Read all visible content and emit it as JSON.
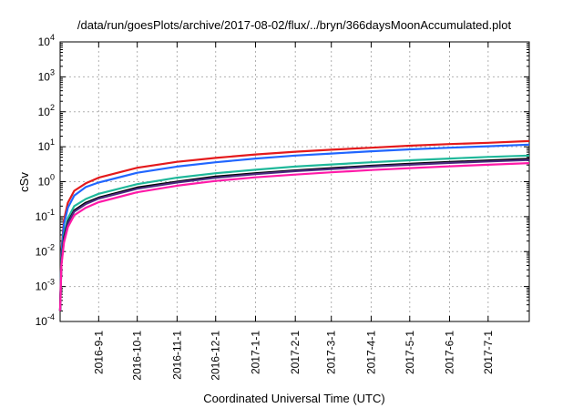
{
  "chart_data": {
    "type": "line",
    "title": "/data/run/goesPlots/archive/2017-08-02/flux/../bryn/366daysMoonAccumulated.plot",
    "xlabel": "Coordinated Universal Time (UTC)",
    "ylabel": "cSv",
    "y_scale": "log",
    "ylim": [
      0.0001,
      10000
    ],
    "xlim": [
      "2016-08-02",
      "2017-08-02"
    ],
    "y_ticks": [
      {
        "base": "10",
        "exp": "-4"
      },
      {
        "base": "10",
        "exp": "-3"
      },
      {
        "base": "10",
        "exp": "-2"
      },
      {
        "base": "10",
        "exp": "-1"
      },
      {
        "base": "10",
        "exp": "0"
      },
      {
        "base": "10",
        "exp": "1"
      },
      {
        "base": "10",
        "exp": "2"
      },
      {
        "base": "10",
        "exp": "3"
      },
      {
        "base": "10",
        "exp": "4"
      }
    ],
    "x_ticks": [
      {
        "label": "2016-9-1",
        "date": "2016-09-01"
      },
      {
        "label": "2016-10-1",
        "date": "2016-10-01"
      },
      {
        "label": "2016-11-1",
        "date": "2016-11-01"
      },
      {
        "label": "2016-12-1",
        "date": "2016-12-01"
      },
      {
        "label": "2017-1-1",
        "date": "2017-01-01"
      },
      {
        "label": "2017-2-1",
        "date": "2017-02-01"
      },
      {
        "label": "2017-3-1",
        "date": "2017-03-01"
      },
      {
        "label": "2017-4-1",
        "date": "2017-04-01"
      },
      {
        "label": "2017-5-1",
        "date": "2017-05-01"
      },
      {
        "label": "2017-6-1",
        "date": "2017-06-01"
      },
      {
        "label": "2017-7-1",
        "date": "2017-07-01"
      }
    ],
    "grid": true,
    "x": [
      "2016-08-02",
      "2016-08-03",
      "2016-08-05",
      "2016-08-08",
      "2016-08-13",
      "2016-08-22",
      "2016-09-01",
      "2016-10-01",
      "2016-11-01",
      "2016-12-01",
      "2017-01-01",
      "2017-02-01",
      "2017-03-01",
      "2017-04-01",
      "2017-05-01",
      "2017-06-01",
      "2017-07-01",
      "2017-08-02"
    ],
    "series": [
      {
        "color": "#e41a1c",
        "values": [
          0.0002,
          0.01,
          0.08,
          0.25,
          0.55,
          0.9,
          1.3,
          2.5,
          3.7,
          4.8,
          6.0,
          7.2,
          8.2,
          9.4,
          10.7,
          11.9,
          13.0,
          14.5
        ]
      },
      {
        "color": "#2166ff",
        "values": [
          0.0002,
          0.008,
          0.06,
          0.18,
          0.4,
          0.7,
          0.95,
          1.8,
          2.7,
          3.6,
          4.6,
          5.6,
          6.4,
          7.4,
          8.4,
          9.4,
          10.3,
          11.5
        ]
      },
      {
        "color": "#1fb89a",
        "values": [
          0.0002,
          0.006,
          0.03,
          0.09,
          0.2,
          0.32,
          0.45,
          0.85,
          1.3,
          1.75,
          2.2,
          2.7,
          3.1,
          3.6,
          4.1,
          4.6,
          5.1,
          5.6
        ]
      },
      {
        "color": "#000000",
        "values": [
          0.0002,
          0.005,
          0.025,
          0.07,
          0.15,
          0.25,
          0.35,
          0.68,
          1.0,
          1.4,
          1.75,
          2.1,
          2.45,
          2.85,
          3.25,
          3.65,
          4.05,
          4.5
        ]
      },
      {
        "color": "#4b2b7f",
        "values": [
          0.0002,
          0.0045,
          0.022,
          0.065,
          0.14,
          0.23,
          0.33,
          0.63,
          0.95,
          1.3,
          1.65,
          2.0,
          2.3,
          2.7,
          3.05,
          3.45,
          3.8,
          4.2
        ]
      },
      {
        "color": "#ff1aa8",
        "values": [
          0.0002,
          0.004,
          0.018,
          0.05,
          0.11,
          0.18,
          0.26,
          0.5,
          0.77,
          1.05,
          1.33,
          1.6,
          1.85,
          2.15,
          2.45,
          2.75,
          3.05,
          3.4
        ]
      }
    ]
  }
}
